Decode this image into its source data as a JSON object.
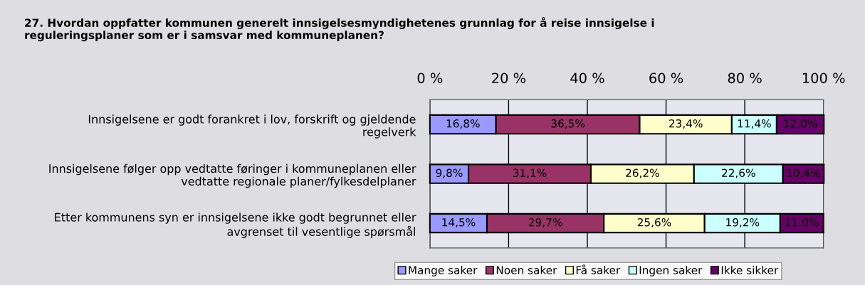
{
  "chart_data": {
    "type": "bar",
    "orientation": "horizontal",
    "stacked": true,
    "title": "27. Hvordan oppfatter kommunen generelt innsigelsesmyndighetenes grunnlag for å reise innsigelse i\nreguleringsplaner som er i samsvar med kommuneplanen?",
    "categories": [
      "Innsigelsene er godt forankret i lov, forskrift og gjeldende\nregelverk",
      "Innsigelsene følger opp vedtatte føringer i kommuneplanen eller\nvedtatte regionale planer/fylkesdelplaner",
      "Etter kommunens syn er innsigelsene ikke godt begrunnet eller\navgrenset til vesentlige spørsmål"
    ],
    "series": [
      {
        "name": "Mange saker",
        "color": "#9999ff",
        "values": [
          16.8,
          9.8,
          14.5
        ],
        "value_labels": [
          "16,8%",
          "9,8%",
          "14,5%"
        ]
      },
      {
        "name": "Noen saker",
        "color": "#993366",
        "values": [
          36.5,
          31.1,
          29.7
        ],
        "value_labels": [
          "36,5%",
          "31,1%",
          "29,7%"
        ]
      },
      {
        "name": "Få saker",
        "color": "#ffffcc",
        "values": [
          23.4,
          26.2,
          25.6
        ],
        "value_labels": [
          "23,4%",
          "26,2%",
          "25,6%"
        ]
      },
      {
        "name": "Ingen saker",
        "color": "#ccffff",
        "values": [
          11.4,
          22.6,
          19.2
        ],
        "value_labels": [
          "11,4%",
          "22,6%",
          "19,2%"
        ]
      },
      {
        "name": "Ikke sikker",
        "color": "#660066",
        "values": [
          12.0,
          10.4,
          11.0
        ],
        "value_labels": [
          "12,0%",
          "10,4%",
          "11,0%"
        ]
      }
    ],
    "xlim": [
      0,
      100
    ],
    "xticks": [
      {
        "value": 0,
        "label": "0 %"
      },
      {
        "value": 20,
        "label": "20 %"
      },
      {
        "value": 40,
        "label": "40 %"
      },
      {
        "value": 60,
        "label": "60 %"
      },
      {
        "value": 80,
        "label": "80 %"
      },
      {
        "value": 100,
        "label": "100 %"
      }
    ],
    "grid": "x",
    "legend": "bottom"
  }
}
